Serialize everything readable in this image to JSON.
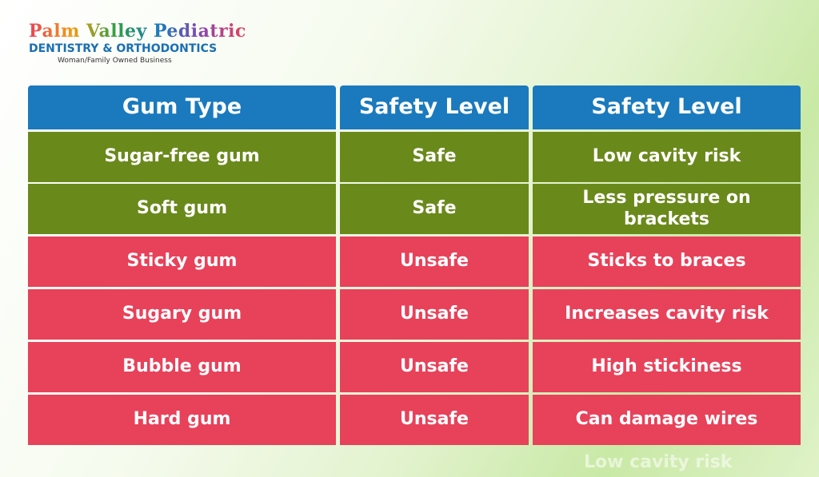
{
  "logo": {
    "name": "Palm Valley Pediatric",
    "line2": "DENTISTRY & ORTHODONTICS",
    "tagline": "Woman/Family Owned Business"
  },
  "table": {
    "header": {
      "cells": [
        "Gum Type",
        "Safety Level",
        "Safety Level"
      ],
      "color": "#1a7abd"
    },
    "rows": [
      {
        "cells": [
          "Sugar-free gum",
          "Safe",
          "Low cavity risk"
        ],
        "color": "#6a891b"
      },
      {
        "cells": [
          "Soft gum",
          "Safe",
          "Less pressure on brackets"
        ],
        "color": "#6a891b"
      },
      {
        "cells": [
          "Sticky gum",
          "Unsafe",
          "Sticks to braces"
        ],
        "color": "#e8415a"
      },
      {
        "cells": [
          "Sugary gum",
          "Unsafe",
          "Increases cavity risk"
        ],
        "color": "#e8415a"
      },
      {
        "cells": [
          "Bubble gum",
          "Unsafe",
          "High stickiness"
        ],
        "color": "#e8415a"
      },
      {
        "cells": [
          "Hard gum",
          "Unsafe",
          "Can damage wires"
        ],
        "color": "#e8415a"
      }
    ]
  },
  "ghost_text": "Low cavity risk"
}
